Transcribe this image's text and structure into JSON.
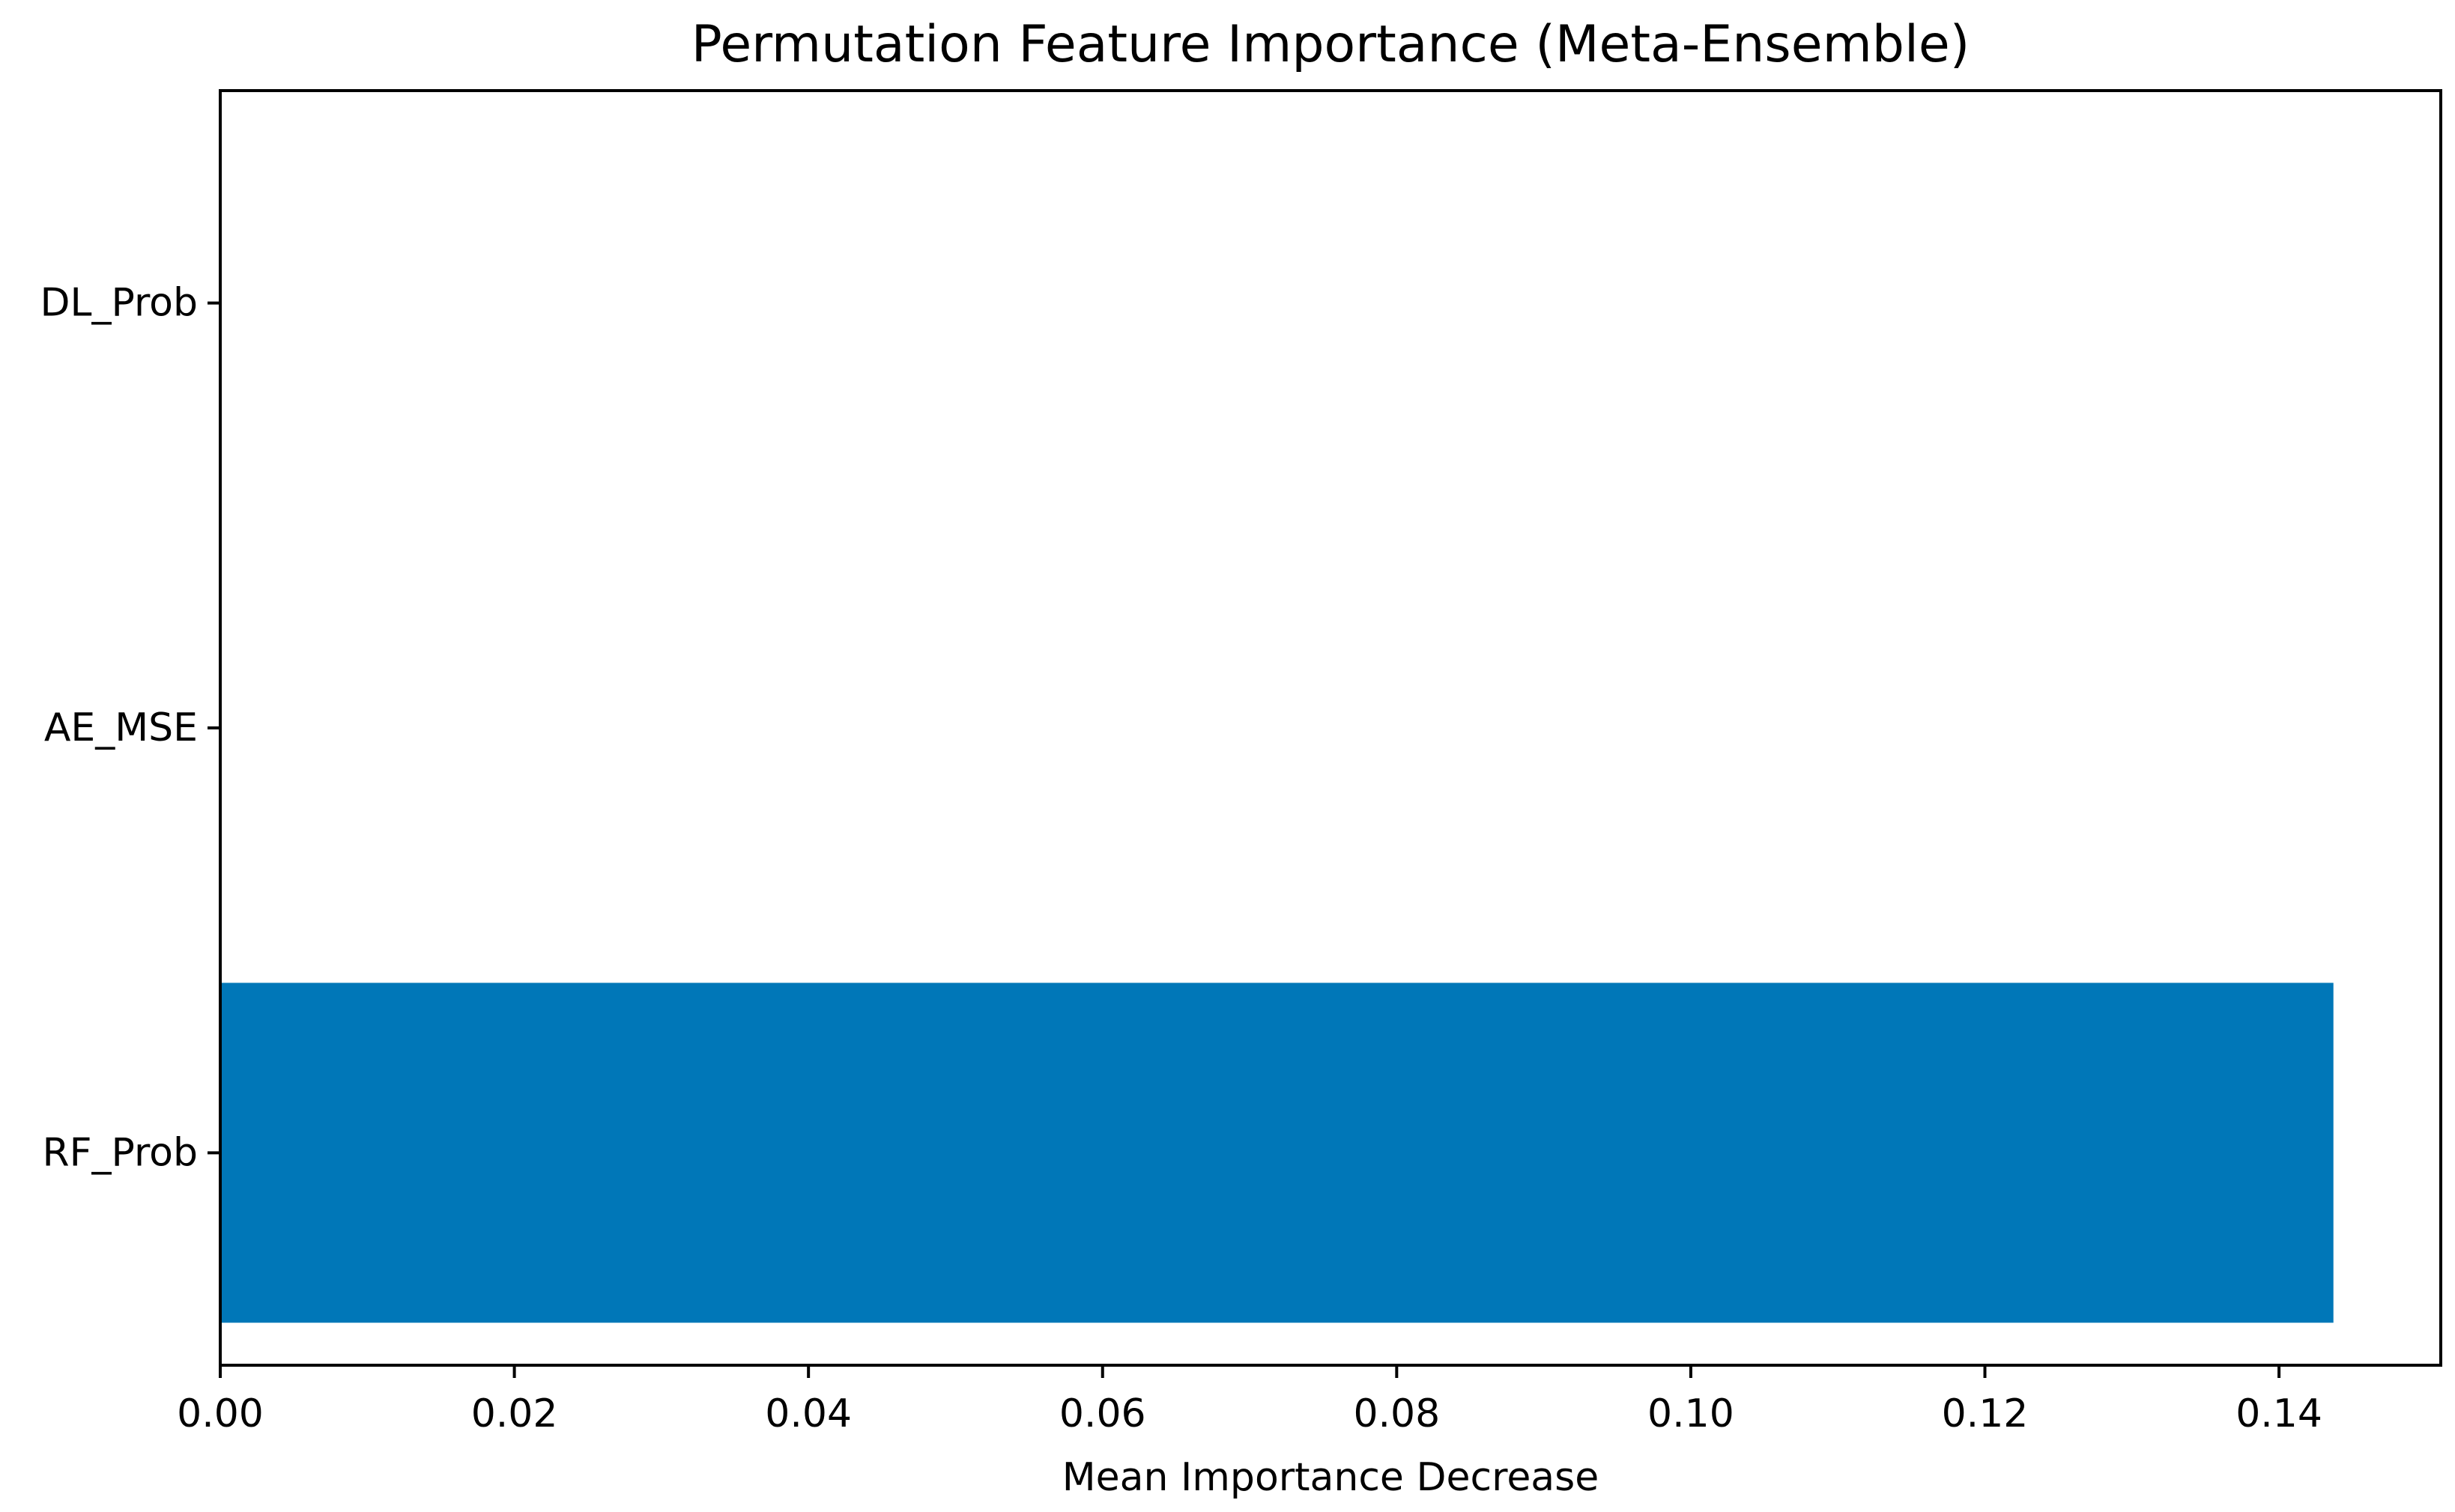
{
  "chart_data": {
    "type": "bar",
    "orientation": "horizontal",
    "title": "Permutation Feature Importance (Meta-Ensemble)",
    "xlabel": "Mean Importance Decrease",
    "ylabel": "",
    "categories": [
      "RF_Prob",
      "AE_MSE",
      "DL_Prob"
    ],
    "values": [
      0.1437,
      0.0,
      0.0
    ],
    "xlim": [
      0.0,
      0.151
    ],
    "x_ticks": [
      0.0,
      0.02,
      0.04,
      0.06,
      0.08,
      0.1,
      0.12,
      0.14
    ],
    "x_tick_labels": [
      "0.00",
      "0.02",
      "0.04",
      "0.06",
      "0.08",
      "0.10",
      "0.12",
      "0.14"
    ],
    "bar_color": "#0077b8",
    "grid": false,
    "legend": "none"
  }
}
